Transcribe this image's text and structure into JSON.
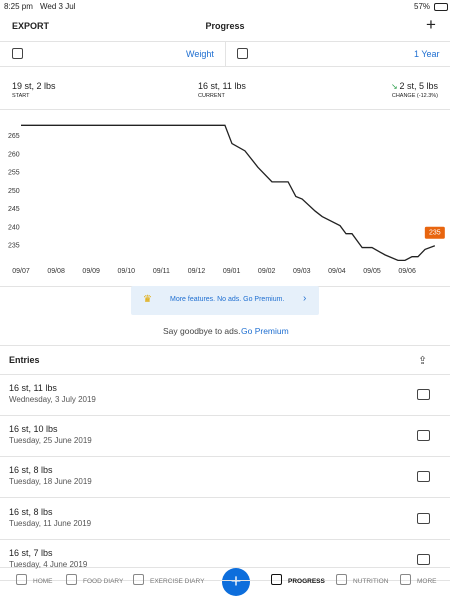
{
  "status_bar": {
    "time": "8:25 pm",
    "date": "Wed 3 Jul",
    "battery": "57%"
  },
  "header": {
    "left": "EXPORT",
    "title": "Progress",
    "right": "+"
  },
  "selector": {
    "metric": "Weight",
    "range": "1 Year"
  },
  "stats": [
    {
      "value": "19 st, 2 lbs",
      "label": "START"
    },
    {
      "value": "16 st, 11 lbs",
      "label": "CURRENT"
    },
    {
      "value": "2 st, 5 lbs",
      "label": "CHANGE (-12.3%)"
    }
  ],
  "chart_data": {
    "type": "line",
    "x": [
      0,
      5.81,
      6.01,
      6.38,
      6.75,
      7.15,
      7.61,
      7.83,
      8.01,
      8.38,
      8.58,
      9.09,
      9.26,
      9.43,
      9.72,
      10.0,
      10.37,
      10.74,
      10.94,
      11.14,
      11.31,
      11.51,
      11.79
    ],
    "series": [
      {
        "color": "#222222",
        "values": [
          268,
          268,
          263,
          261,
          256.5,
          252.5,
          252.5,
          248.5,
          247.8,
          244.5,
          243,
          240.5,
          238.3,
          238.3,
          234.5,
          234.5,
          232.5,
          231,
          231,
          232,
          232,
          234,
          235
        ]
      }
    ],
    "last_label_color": "#e8650f",
    "xlim": [
      0,
      12
    ],
    "ylim": [
      230,
      270
    ],
    "xticks": [
      {
        "value": 0,
        "label": "09/07"
      },
      {
        "value": 1,
        "label": "09/08"
      },
      {
        "value": 2,
        "label": "09/09"
      },
      {
        "value": 3,
        "label": "09/10"
      },
      {
        "value": 4,
        "label": "09/11"
      },
      {
        "value": 5,
        "label": "09/12"
      },
      {
        "value": 6,
        "label": "09/01"
      },
      {
        "value": 7,
        "label": "09/02"
      },
      {
        "value": 8,
        "label": "09/03"
      },
      {
        "value": 9,
        "label": "09/04"
      },
      {
        "value": 10,
        "label": "09/05"
      },
      {
        "value": 11,
        "label": "09/06"
      }
    ],
    "yticks": [
      235,
      240,
      245,
      250,
      255,
      260,
      265
    ],
    "grid": false
  },
  "promo": {
    "banner": "More features. No ads. Go Premium.",
    "text": "Say goodbye to ads.",
    "link": "Go Premium"
  },
  "entries": {
    "title": "Entries",
    "items": [
      {
        "weight": "16 st, 11 lbs",
        "date": "Wednesday, 3 July 2019"
      },
      {
        "weight": "16 st, 10 lbs",
        "date": "Tuesday, 25 June 2019"
      },
      {
        "weight": "16 st, 8 lbs",
        "date": "Tuesday, 18 June 2019"
      },
      {
        "weight": "16 st, 8 lbs",
        "date": "Tuesday, 11 June 2019"
      },
      {
        "weight": "16 st, 7 lbs",
        "date": "Tuesday, 4 June 2019"
      }
    ]
  },
  "nav": [
    "HOME",
    "FOOD DIARY",
    "EXERCISE DIARY",
    "PROGRESS",
    "NUTRITION",
    "MORE"
  ]
}
